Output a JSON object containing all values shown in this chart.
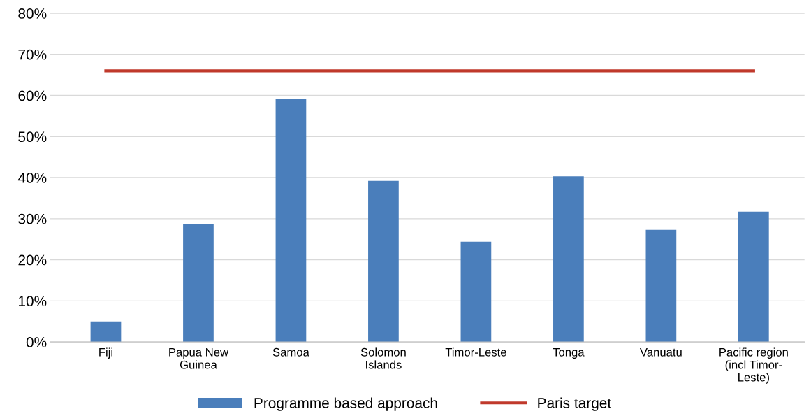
{
  "chart_data": {
    "type": "bar",
    "categories": [
      "Fiji",
      "Papua New\nGuinea",
      "Samoa",
      "Solomon\nIslands",
      "Timor-Leste",
      "Tonga",
      "Vanuatu",
      "Pacific region\n(incl Timor-\nLeste)"
    ],
    "series": [
      {
        "name": "Programme based approach",
        "color": "#4a7ebb",
        "values": [
          5,
          28.7,
          59.2,
          39.2,
          24.4,
          40.3,
          27.3,
          31.7
        ]
      },
      {
        "name": "Paris target",
        "type": "line",
        "color": "#c0392b",
        "values": [
          66,
          66,
          66,
          66,
          66,
          66,
          66,
          66
        ]
      }
    ],
    "ylim": [
      0,
      80
    ],
    "yticks": [
      {
        "value": 0,
        "label": "0%"
      },
      {
        "value": 10,
        "label": "10%"
      },
      {
        "value": 20,
        "label": "20%"
      },
      {
        "value": 30,
        "label": "30%"
      },
      {
        "value": 40,
        "label": "40%"
      },
      {
        "value": 50,
        "label": "50%"
      },
      {
        "value": 60,
        "label": "60%"
      },
      {
        "value": 70,
        "label": "70%"
      },
      {
        "value": 80,
        "label": "80%"
      }
    ],
    "grid": "y",
    "legend": "bottom",
    "marker": "none"
  }
}
